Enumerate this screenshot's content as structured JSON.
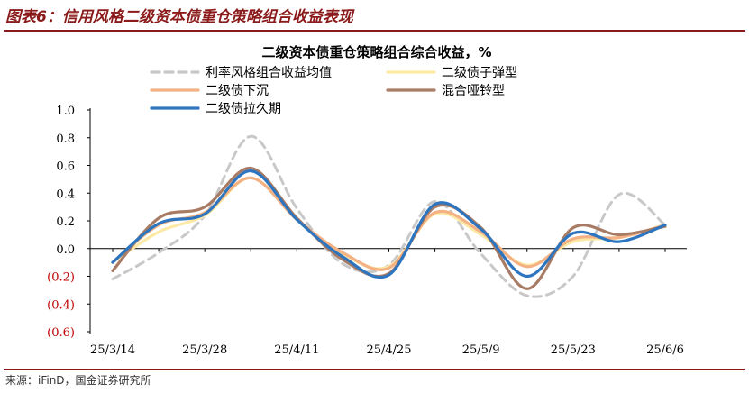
{
  "figure": {
    "title": "图表6：信用风格二级资本债重仓策略组合收益表现",
    "source": "来源：iFinD，国金证券研究所"
  },
  "chart_data": {
    "type": "line",
    "title": "二级资本债重仓策略组合综合收益，%",
    "xlabel": "",
    "ylabel": "",
    "ylim": [
      -0.6,
      1.0
    ],
    "yticks": [
      1.0,
      0.8,
      0.6,
      0.4,
      0.2,
      0.0,
      -0.2,
      -0.4,
      -0.6
    ],
    "ytick_labels": [
      "1.0",
      "0.8",
      "0.6",
      "0.4",
      "0.2",
      "0.0",
      "(0.2)",
      "(0.4)",
      "(0.6)"
    ],
    "negative_label_color": "#c00000",
    "x_range": [
      0,
      12
    ],
    "xticks": [
      0,
      2,
      4,
      6,
      8,
      10,
      12
    ],
    "xtick_labels": [
      "25/3/14",
      "25/3/28",
      "25/4/11",
      "25/4/25",
      "25/5/9",
      "25/5/23",
      "25/6/6"
    ],
    "x": [
      0,
      1,
      2,
      3,
      4,
      5,
      6,
      7,
      8,
      9,
      10,
      11,
      12
    ],
    "grid": false,
    "legend_position": "top",
    "series": [
      {
        "name": "利率风格组合收益均值",
        "color": "#c8c8c8",
        "dash": true,
        "values": [
          -0.22,
          -0.03,
          0.24,
          0.81,
          0.29,
          -0.11,
          -0.12,
          0.34,
          -0.04,
          -0.34,
          -0.2,
          0.39,
          0.17
        ]
      },
      {
        "name": "二级债子弹型",
        "color": "#fde9a6",
        "dash": false,
        "values": [
          -0.1,
          0.12,
          0.24,
          0.51,
          0.21,
          -0.04,
          -0.13,
          0.25,
          0.1,
          -0.12,
          0.05,
          0.08,
          0.17
        ]
      },
      {
        "name": "二级债下沉",
        "color": "#f4b183",
        "dash": false,
        "values": [
          -0.1,
          0.17,
          0.26,
          0.51,
          0.21,
          -0.03,
          -0.14,
          0.26,
          0.12,
          -0.13,
          0.07,
          0.08,
          0.17
        ]
      },
      {
        "name": "混合哑铃型",
        "color": "#a87b64",
        "dash": false,
        "values": [
          -0.16,
          0.22,
          0.3,
          0.58,
          0.22,
          -0.08,
          -0.18,
          0.3,
          0.15,
          -0.29,
          0.15,
          0.1,
          0.16
        ]
      },
      {
        "name": "二级债拉久期",
        "color": "#2e75c0",
        "dash": false,
        "values": [
          -0.1,
          0.18,
          0.25,
          0.56,
          0.21,
          -0.06,
          -0.19,
          0.32,
          0.14,
          -0.2,
          0.11,
          0.05,
          0.17
        ]
      }
    ]
  }
}
